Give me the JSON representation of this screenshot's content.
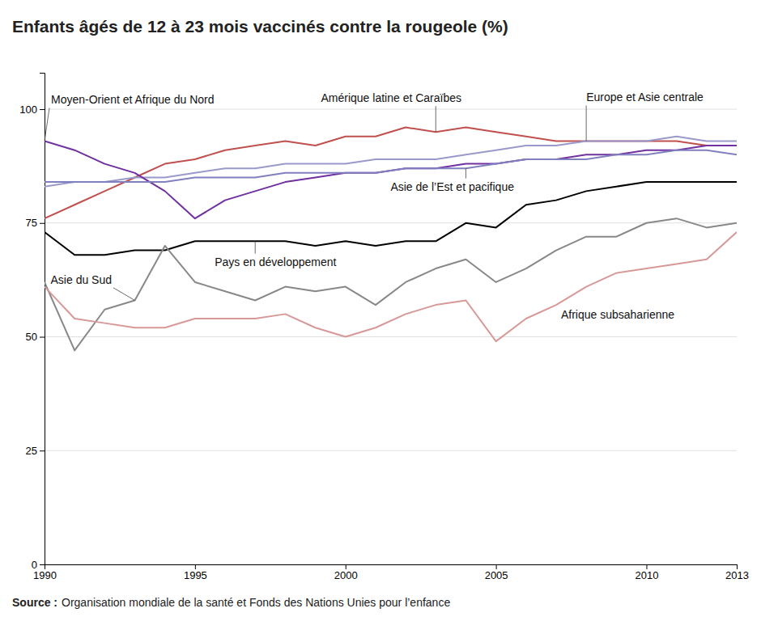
{
  "chart_data": {
    "type": "line",
    "title": "Enfants âgés de 12 à 23 mois vaccinés contre la rougeole (%)",
    "source_label": "Source :",
    "source": "Organisation mondiale de la santé et Fonds des Nations Unies pour l’enfance",
    "x": [
      1990,
      1991,
      1992,
      1993,
      1994,
      1995,
      1996,
      1997,
      1998,
      1999,
      2000,
      2001,
      2002,
      2003,
      2004,
      2005,
      2006,
      2007,
      2008,
      2009,
      2010,
      2011,
      2012,
      2013
    ],
    "series": [
      {
        "name": "Amérique latine et Caraïbes",
        "color": "#c0504d",
        "values": [
          76,
          79,
          82,
          85,
          88,
          89,
          91,
          92,
          93,
          92,
          94,
          94,
          96,
          95,
          96,
          95,
          94,
          93,
          93,
          93,
          93,
          93,
          92,
          92
        ]
      },
      {
        "name": "Europe et Asie centrale",
        "color": "#9999cc",
        "values": [
          83,
          84,
          84,
          85,
          85,
          86,
          87,
          87,
          88,
          88,
          88,
          89,
          89,
          89,
          90,
          91,
          92,
          92,
          93,
          93,
          93,
          94,
          93,
          93
        ]
      },
      {
        "name": "Moyen-Orient et Afrique du Nord",
        "color": "#7030a0",
        "values": [
          93,
          91,
          88,
          86,
          82,
          76,
          80,
          82,
          84,
          85,
          86,
          86,
          87,
          87,
          88,
          88,
          89,
          89,
          90,
          90,
          91,
          91,
          92,
          92
        ]
      },
      {
        "name": "Asie de l’Est et pacifique",
        "color": "#8080c0",
        "values": [
          84,
          84,
          84,
          84,
          84,
          85,
          85,
          85,
          86,
          86,
          86,
          86,
          87,
          87,
          87,
          88,
          89,
          89,
          89,
          90,
          90,
          91,
          91,
          90
        ]
      },
      {
        "name": "Pays en développement",
        "color": "#000000",
        "values": [
          73,
          68,
          68,
          69,
          69,
          71,
          71,
          71,
          71,
          70,
          71,
          70,
          71,
          71,
          75,
          74,
          79,
          80,
          82,
          83,
          84,
          84,
          84,
          84
        ]
      },
      {
        "name": "Asie du Sud",
        "color": "#888888",
        "values": [
          62,
          47,
          56,
          58,
          70,
          62,
          60,
          58,
          61,
          60,
          61,
          57,
          62,
          65,
          67,
          62,
          65,
          69,
          72,
          72,
          75,
          76,
          74,
          75
        ]
      },
      {
        "name": "Afrique subsaharienne",
        "color": "#d99898",
        "values": [
          61,
          54,
          53,
          52,
          52,
          54,
          54,
          54,
          55,
          52,
          50,
          52,
          55,
          57,
          58,
          49,
          54,
          57,
          61,
          64,
          65,
          66,
          67,
          73
        ]
      }
    ],
    "xlim": [
      1990,
      2013
    ],
    "xticks": [
      1990,
      1995,
      2000,
      2005,
      2010,
      2013
    ],
    "ylim": [
      0,
      108
    ],
    "yticks": [
      0,
      25,
      50,
      75,
      100
    ],
    "grid": "y"
  }
}
